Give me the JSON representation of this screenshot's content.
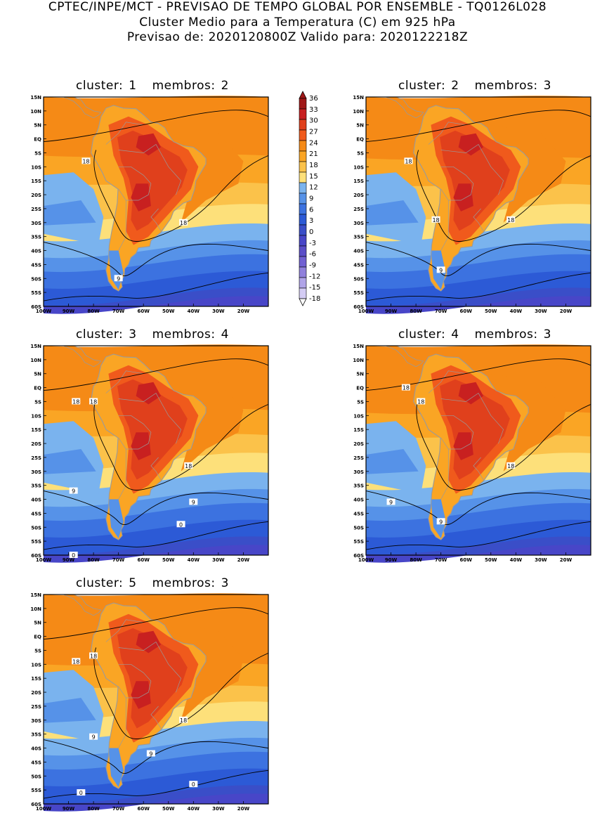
{
  "header": {
    "line1": "CPTEC/INPE/MCT - PREVISAO DE TEMPO GLOBAL POR ENSEMBLE - TQ0126L028",
    "line2": "Cluster Medio para a Temperatura (C) em 925 hPa",
    "line3": "Previsao de: 2020120800Z    Valido para: 2020122218Z"
  },
  "panels": [
    {
      "cluster_label": "cluster:",
      "cluster": "1",
      "members_label": "membros:",
      "members": "2",
      "contour_labels": [
        "18",
        "18",
        "9"
      ]
    },
    {
      "cluster_label": "cluster:",
      "cluster": "2",
      "members_label": "membros:",
      "members": "3",
      "contour_labels": [
        "18",
        "18",
        "18",
        "9"
      ]
    },
    {
      "cluster_label": "cluster:",
      "cluster": "3",
      "members_label": "membros:",
      "members": "4",
      "contour_labels": [
        "18",
        "18",
        "18",
        "9",
        "9",
        "0",
        "0"
      ]
    },
    {
      "cluster_label": "cluster:",
      "cluster": "4",
      "members_label": "membros:",
      "members": "3",
      "contour_labels": [
        "18",
        "18",
        "18",
        "9",
        "9"
      ]
    },
    {
      "cluster_label": "cluster:",
      "cluster": "5",
      "members_label": "membros:",
      "members": "3",
      "contour_labels": [
        "18",
        "18",
        "18",
        "9",
        "9",
        "0",
        "0"
      ]
    }
  ],
  "lat_labels": [
    "15N",
    "10N",
    "5N",
    "EQ",
    "5S",
    "10S",
    "15S",
    "20S",
    "25S",
    "30S",
    "35S",
    "40S",
    "45S",
    "50S",
    "55S",
    "60S"
  ],
  "lon_labels": [
    "100W",
    "90W",
    "80W",
    "70W",
    "60W",
    "50W",
    "40W",
    "30W",
    "20W"
  ],
  "colorbar": {
    "labels": [
      "36",
      "33",
      "30",
      "27",
      "24",
      "21",
      "18",
      "15",
      "12",
      "9",
      "6",
      "3",
      "0",
      "-3",
      "-6",
      "-9",
      "-12",
      "-15",
      "-18"
    ],
    "colors": [
      "#a01818",
      "#c82020",
      "#e0401c",
      "#f05a1c",
      "#f58a16",
      "#faa524",
      "#fbc24a",
      "#fde07a",
      "#7ab3ee",
      "#5692e8",
      "#3c72e0",
      "#2c5ad6",
      "#3a4ec8",
      "#4846c8",
      "#5a4ec8",
      "#7060d2",
      "#9080dc",
      "#b0a4e8",
      "#d4ccf4"
    ]
  },
  "colors": {
    "land_outline": "#9a9a9a",
    "contour": "#000000"
  }
}
